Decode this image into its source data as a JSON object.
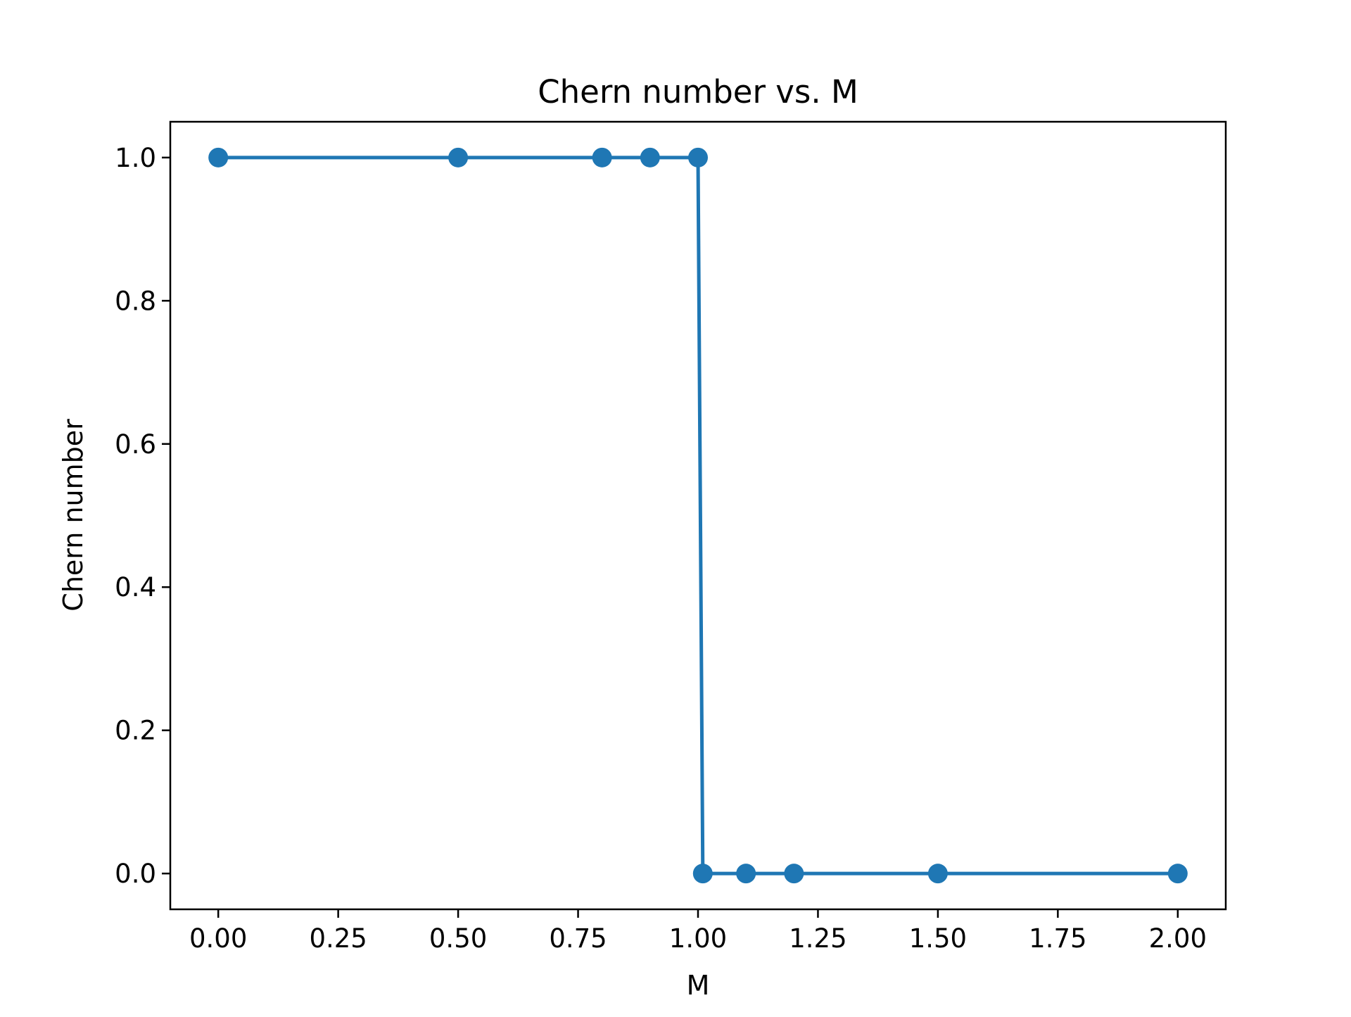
{
  "chart_data": {
    "type": "line",
    "title": "Chern number vs. M",
    "xlabel": "M",
    "ylabel": "Chern number",
    "xlim": [
      -0.1,
      2.1
    ],
    "ylim": [
      -0.05,
      1.05
    ],
    "xticks": [
      0.0,
      0.25,
      0.5,
      0.75,
      1.0,
      1.25,
      1.5,
      1.75,
      2.0
    ],
    "xtick_labels": [
      "0.00",
      "0.25",
      "0.50",
      "0.75",
      "1.00",
      "1.25",
      "1.50",
      "1.75",
      "2.00"
    ],
    "yticks": [
      0.0,
      0.2,
      0.4,
      0.6,
      0.8,
      1.0
    ],
    "ytick_labels": [
      "0.0",
      "0.2",
      "0.4",
      "0.6",
      "0.8",
      "1.0"
    ],
    "grid": false,
    "legend": "none",
    "series": [
      {
        "color": "#1f77b4",
        "marker": "circle",
        "x": [
          0.0,
          0.5,
          0.8,
          0.9,
          1.0,
          1.01,
          1.1,
          1.2,
          1.5,
          2.0
        ],
        "y": [
          1,
          1,
          1,
          1,
          1,
          0,
          0,
          0,
          0,
          0
        ]
      }
    ]
  }
}
